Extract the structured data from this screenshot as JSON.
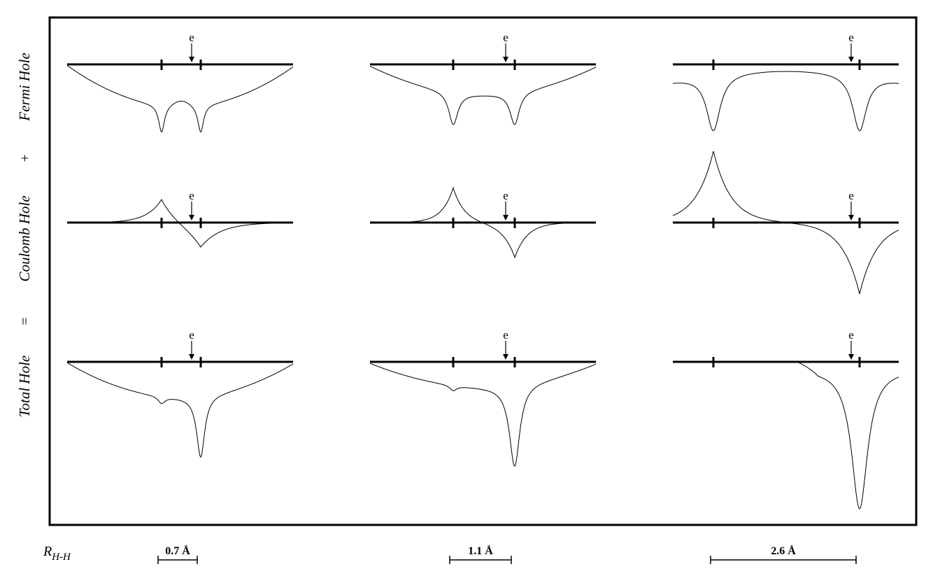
{
  "row_labels": {
    "fermi": "Fermi Hole",
    "plus": "+",
    "coulomb": "Coulomb Hole",
    "equals": "=",
    "total": "Total Hole"
  },
  "electron_label": "e",
  "distance_label": {
    "symbol": "R",
    "subscript": "H-H"
  },
  "columns": [
    {
      "distance": "0.7 Å"
    },
    {
      "distance": "1.1 Å"
    },
    {
      "distance": "2.6 Å"
    }
  ]
}
